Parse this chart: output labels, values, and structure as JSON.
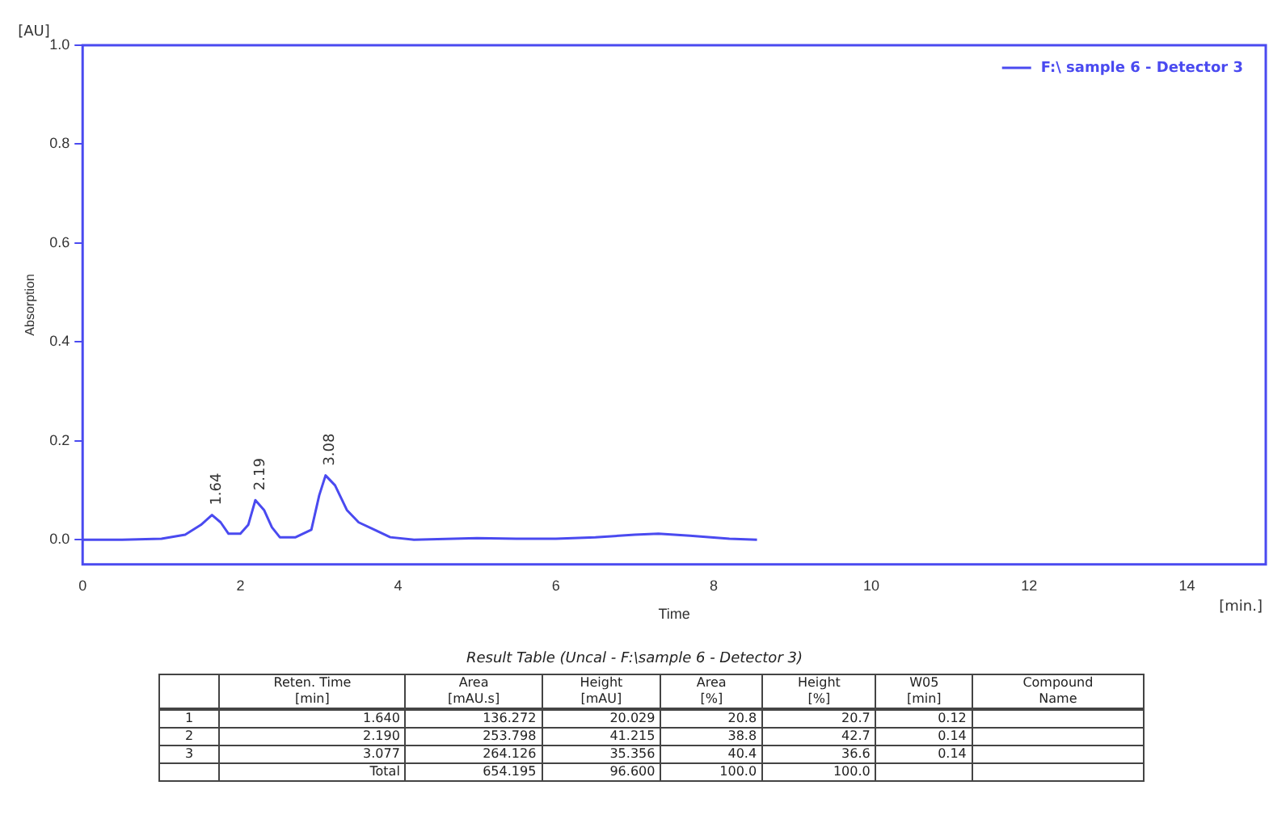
{
  "chart_data": {
    "type": "line",
    "xlabel": "Time",
    "ylabel": "Absorption",
    "xlim": [
      0,
      15
    ],
    "ylim": [
      -0.05,
      1.0
    ],
    "xticks": [
      0,
      2,
      4,
      6,
      8,
      10,
      12,
      14
    ],
    "yticks": [
      {
        "value": 0,
        "label": "0.0"
      },
      {
        "value": 0.2,
        "label": "0.2"
      },
      {
        "value": 0.4,
        "label": "0.4"
      },
      {
        "value": 0.6,
        "label": "0.6"
      },
      {
        "value": 0.8,
        "label": "0.8"
      },
      {
        "value": 1,
        "label": "1.0"
      }
    ],
    "grid": false,
    "legend": "top right",
    "marker": "none",
    "line_style": "solid",
    "x": [
      0,
      0.5,
      1.0,
      1.3,
      1.5,
      1.64,
      1.75,
      1.85,
      2.0,
      2.1,
      2.19,
      2.3,
      2.4,
      2.5,
      2.7,
      2.9,
      3.0,
      3.08,
      3.2,
      3.35,
      3.5,
      3.7,
      3.9,
      4.2,
      5.0,
      5.5,
      6.0,
      6.5,
      7.0,
      7.3,
      7.7,
      8.2,
      8.55
    ],
    "series": [
      {
        "name": "F:\\ sample 6 - Detector 3",
        "color": "#4a4af0",
        "values": [
          0,
          0,
          0.002,
          0.01,
          0.03,
          0.05,
          0.035,
          0.012,
          0.012,
          0.03,
          0.08,
          0.06,
          0.025,
          0.005,
          0.005,
          0.02,
          0.09,
          0.13,
          0.11,
          0.06,
          0.035,
          0.02,
          0.005,
          0,
          0.003,
          0.002,
          0.002,
          0.005,
          0.01,
          0.012,
          0.008,
          0.002,
          0
        ]
      }
    ],
    "annotations": [
      {
        "text": "1.64",
        "x": 1.64,
        "y": 0.05
      },
      {
        "text": "2.19",
        "x": 2.19,
        "y": 0.08
      },
      {
        "text": "3.08",
        "x": 3.08,
        "y": 0.13
      },
      "[AU]",
      "[min.]",
      "Result Table (Uncal - F:\\sample 6 - Detector 3)",
      null,
      "Reten. Time\n[min]",
      "Area\n[mAU.s]",
      "Height\n[mAU]",
      "Area\n[%]",
      "Height\n[%]",
      "W05\n[min]",
      "Compound\nName",
      "1",
      "1.640",
      "136.272",
      "20.029",
      "20.8",
      "20.7",
      "0.12",
      null,
      "2",
      "2.190",
      "253.798",
      "41.215",
      "38.8",
      "42.7",
      "0.14",
      null,
      "3",
      "3.077",
      "264.126",
      "35.356",
      "40.4",
      "36.6",
      "0.14",
      null,
      null,
      "Total",
      "654.195",
      "96.600",
      "100.0",
      "100.0",
      null,
      null
    ]
  }
}
